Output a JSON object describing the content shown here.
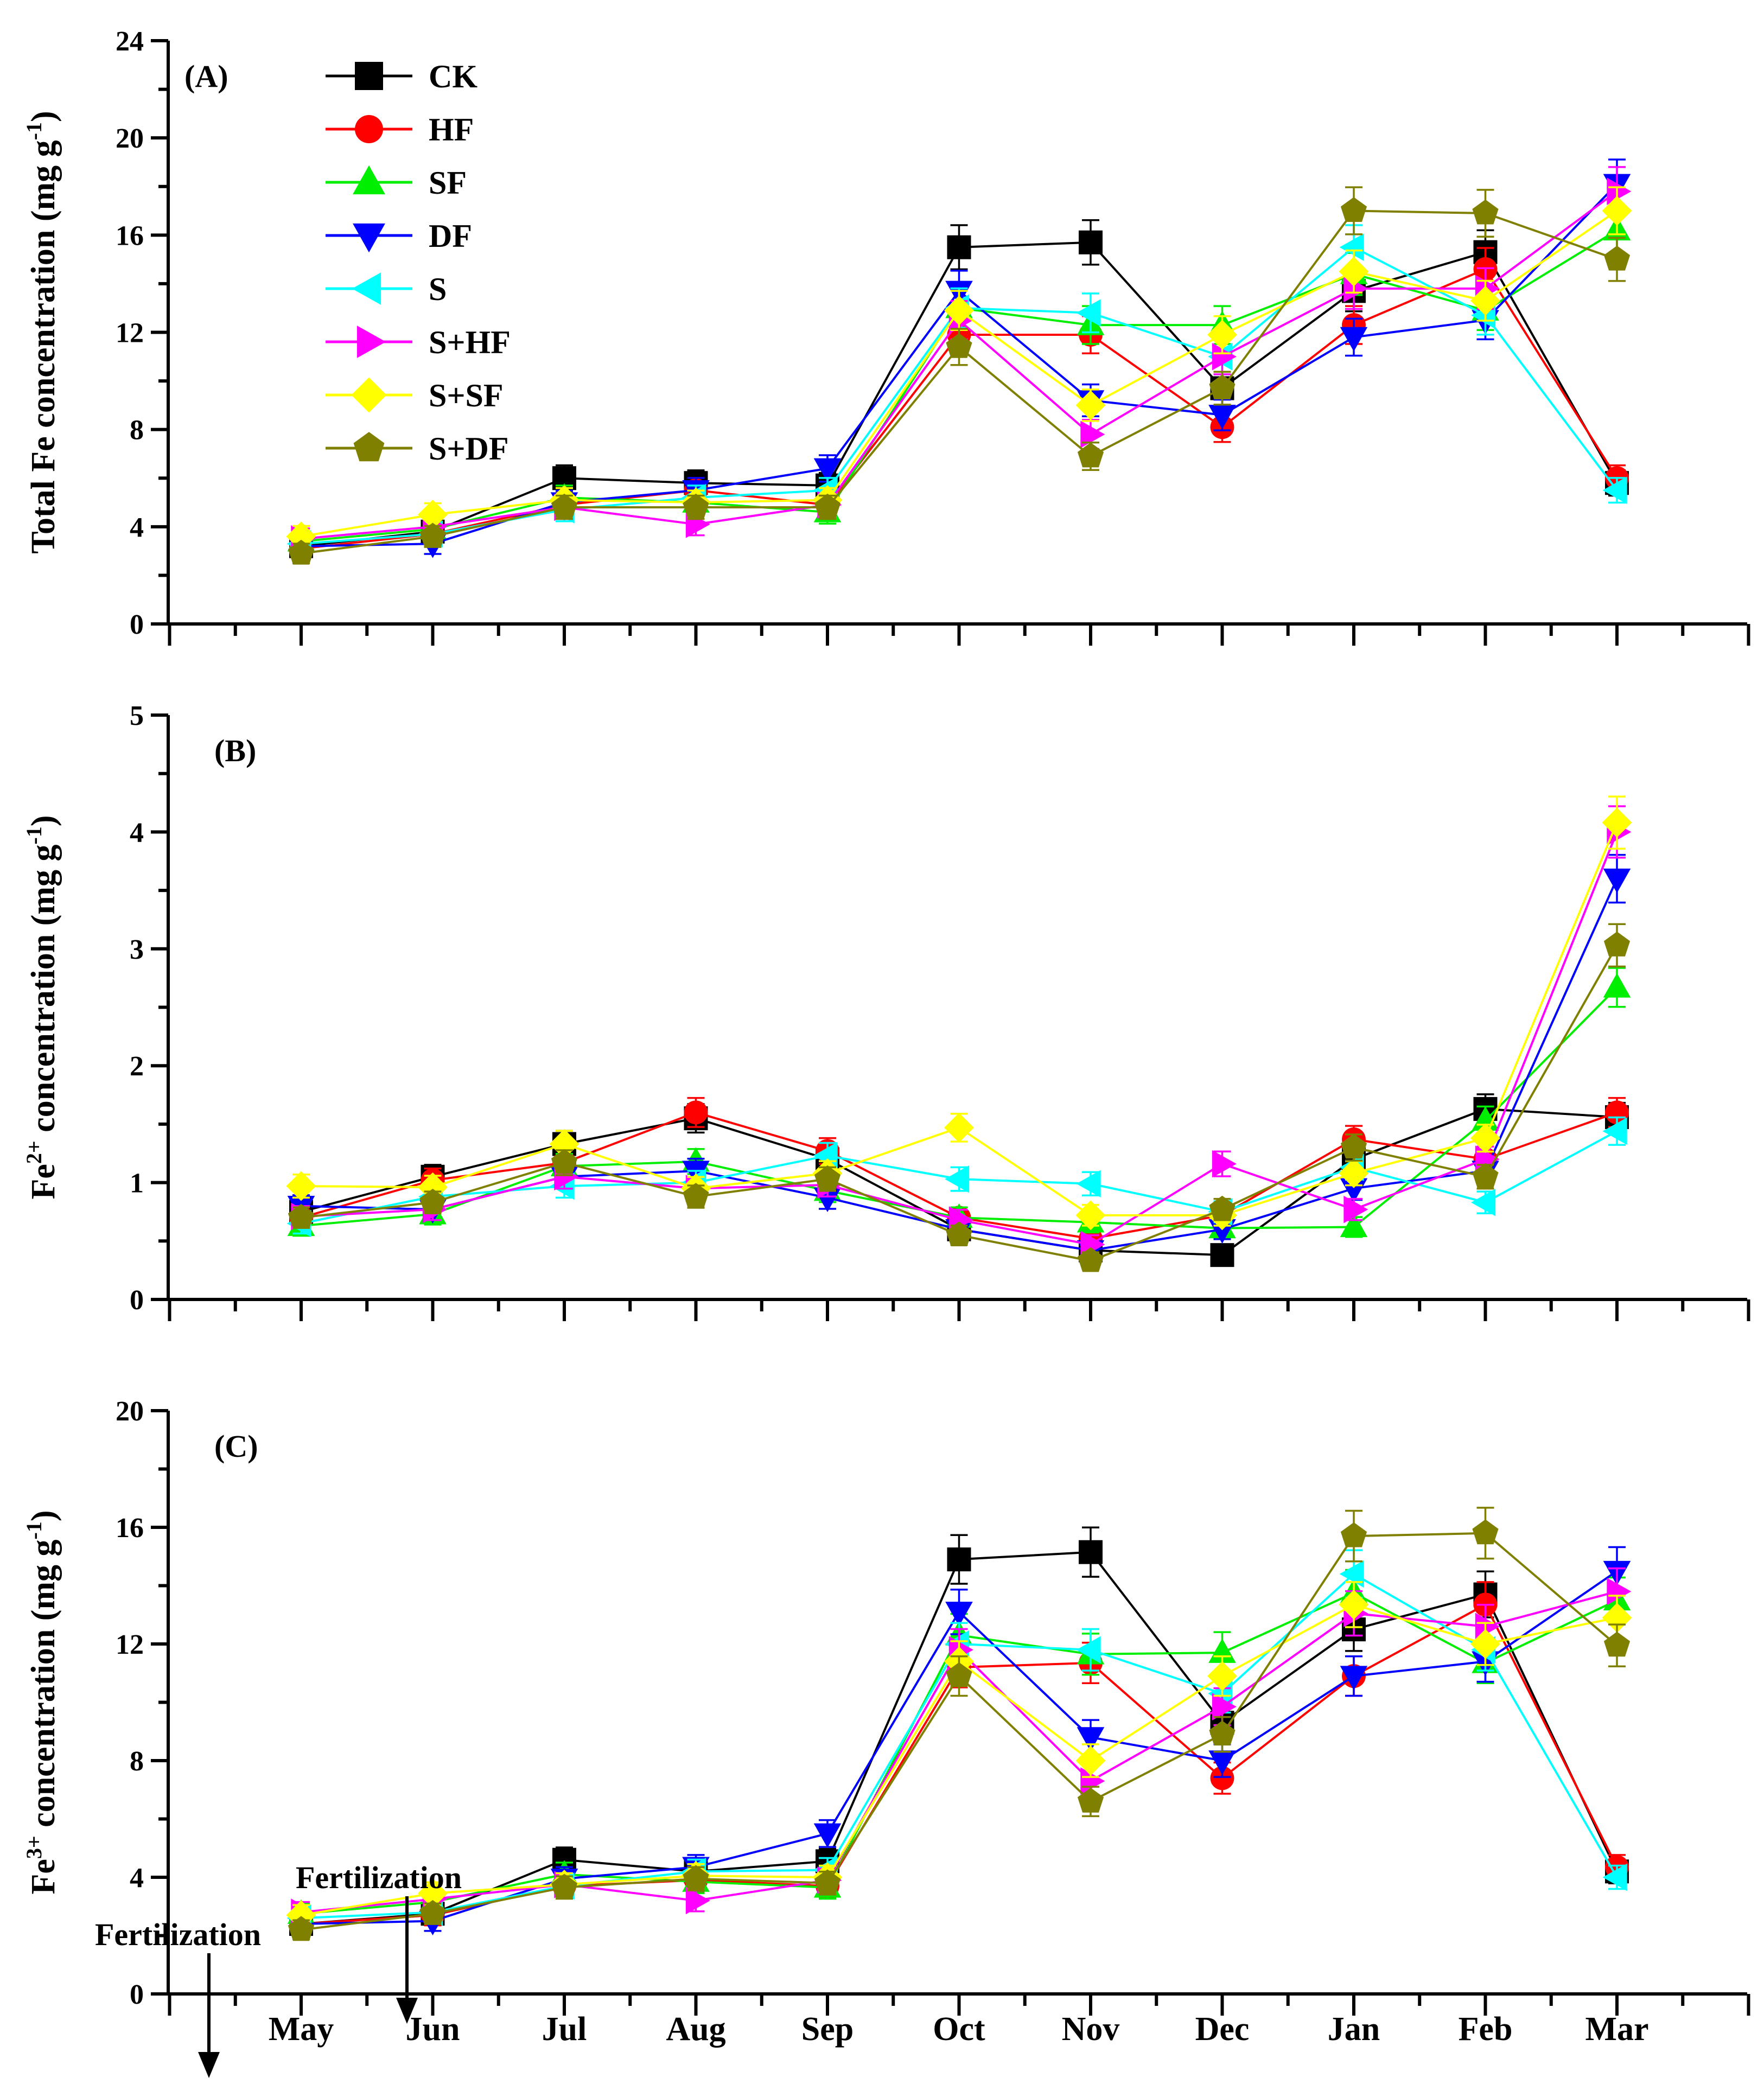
{
  "months": [
    "May",
    "Jun",
    "Jul",
    "Aug",
    "Sep",
    "Oct",
    "Nov",
    "Dec",
    "Jan",
    "Feb",
    "Mar"
  ],
  "series_styles": [
    {
      "name": "CK",
      "color": "#000000",
      "marker": "square"
    },
    {
      "name": "HF",
      "color": "#ff0000",
      "marker": "circle"
    },
    {
      "name": "SF",
      "color": "#00ee00",
      "marker": "triangle-up"
    },
    {
      "name": "DF",
      "color": "#0000ff",
      "marker": "triangle-down"
    },
    {
      "name": "S",
      "color": "#00ffff",
      "marker": "triangle-left"
    },
    {
      "name": "S+HF",
      "color": "#ff00ff",
      "marker": "triangle-right"
    },
    {
      "name": "S+SF",
      "color": "#ffff00",
      "marker": "diamond"
    },
    {
      "name": "S+DF",
      "color": "#808000",
      "marker": "pentagon"
    }
  ],
  "annotations": {
    "fertilization_1": "Fertilization",
    "fertilization_2": "Fertilization"
  },
  "chart_data": [
    {
      "panel": "(A)",
      "type": "line",
      "ylabel_main": "Total Fe concentration  (mg g",
      "ylabel_sup": "-1",
      "ylabel_end": ")",
      "ylim": [
        0,
        24
      ],
      "yticks": [
        0,
        4,
        8,
        12,
        16,
        20,
        24
      ],
      "show_legend": true,
      "legend_position": "top-left",
      "series": [
        {
          "name": "CK",
          "values": [
            3.2,
            3.8,
            6.0,
            5.8,
            5.7,
            15.5,
            15.7,
            9.7,
            13.7,
            15.3,
            5.8
          ]
        },
        {
          "name": "HF",
          "values": [
            3.1,
            3.7,
            4.9,
            5.5,
            4.9,
            11.9,
            11.9,
            8.1,
            12.3,
            14.6,
            6.0
          ]
        },
        {
          "name": "SF",
          "values": [
            3.4,
            3.9,
            5.2,
            5.0,
            4.6,
            13.0,
            12.3,
            12.3,
            14.4,
            12.9,
            16.2
          ]
        },
        {
          "name": "DF",
          "values": [
            3.2,
            3.3,
            5.0,
            5.5,
            6.4,
            13.7,
            9.2,
            8.6,
            11.8,
            12.5,
            18.1
          ]
        },
        {
          "name": "S",
          "values": [
            3.3,
            3.7,
            4.7,
            5.2,
            5.5,
            13.0,
            12.8,
            11.0,
            15.5,
            12.7,
            5.5
          ]
        },
        {
          "name": "S+HF",
          "values": [
            3.5,
            4.0,
            4.8,
            4.1,
            4.9,
            12.5,
            7.8,
            11.0,
            13.8,
            13.8,
            17.8
          ]
        },
        {
          "name": "S+SF",
          "values": [
            3.6,
            4.5,
            5.1,
            5.0,
            5.1,
            12.9,
            9.0,
            11.9,
            14.5,
            13.3,
            17.0
          ]
        },
        {
          "name": "S+DF",
          "values": [
            2.9,
            3.6,
            4.8,
            4.8,
            4.8,
            11.4,
            6.9,
            9.7,
            17.0,
            16.9,
            15.0
          ]
        }
      ]
    },
    {
      "panel": "(B)",
      "type": "line",
      "ylabel_main": "Fe",
      "ylabel_sup": "2+",
      "ylabel_end": " concentration  (mg g",
      "ylabel_sup2": "-1",
      "ylabel_end2": ")",
      "ylim": [
        0,
        5
      ],
      "yticks": [
        0,
        1,
        2,
        3,
        4,
        5
      ],
      "show_legend": false,
      "series": [
        {
          "name": "CK",
          "values": [
            0.75,
            1.05,
            1.33,
            1.55,
            1.2,
            0.6,
            0.42,
            0.38,
            1.2,
            1.63,
            1.56
          ]
        },
        {
          "name": "HF",
          "values": [
            0.7,
            1.02,
            1.17,
            1.6,
            1.27,
            0.7,
            0.52,
            0.72,
            1.37,
            1.2,
            1.6
          ]
        },
        {
          "name": "SF",
          "values": [
            0.63,
            0.73,
            1.14,
            1.18,
            0.93,
            0.7,
            0.66,
            0.61,
            0.62,
            1.53,
            2.67
          ]
        },
        {
          "name": "DF",
          "values": [
            0.8,
            0.77,
            1.05,
            1.1,
            0.87,
            0.6,
            0.42,
            0.6,
            0.95,
            1.1,
            3.6
          ]
        },
        {
          "name": "S",
          "values": [
            0.65,
            0.88,
            0.97,
            1.0,
            1.23,
            1.03,
            0.99,
            0.75,
            1.13,
            0.83,
            1.44
          ]
        },
        {
          "name": "S+HF",
          "values": [
            0.71,
            0.77,
            1.05,
            0.95,
            0.98,
            0.68,
            0.47,
            1.16,
            0.77,
            1.2,
            4.0
          ]
        },
        {
          "name": "S+SF",
          "values": [
            0.97,
            0.96,
            1.33,
            0.95,
            1.08,
            1.47,
            0.72,
            0.72,
            1.08,
            1.38,
            4.08
          ]
        },
        {
          "name": "S+DF",
          "values": [
            0.7,
            0.83,
            1.17,
            0.88,
            1.03,
            0.55,
            0.33,
            0.77,
            1.3,
            1.05,
            3.03
          ]
        }
      ]
    },
    {
      "panel": "(C)",
      "type": "line",
      "ylabel_main": "Fe",
      "ylabel_sup": "3+",
      "ylabel_end": " concentration  (mg g",
      "ylabel_sup2": "-1",
      "ylabel_end2": ")",
      "ylim": [
        0,
        20
      ],
      "yticks": [
        0,
        4,
        8,
        12,
        16,
        20
      ],
      "show_legend": false,
      "series": [
        {
          "name": "CK",
          "values": [
            2.4,
            2.75,
            4.6,
            4.2,
            4.55,
            14.9,
            15.15,
            9.3,
            12.5,
            13.7,
            4.2
          ]
        },
        {
          "name": "HF",
          "values": [
            2.4,
            2.7,
            3.7,
            3.9,
            3.7,
            11.2,
            11.35,
            7.4,
            10.9,
            13.35,
            4.35
          ]
        },
        {
          "name": "SF",
          "values": [
            2.75,
            3.15,
            4.1,
            3.85,
            3.65,
            12.3,
            11.65,
            11.7,
            13.75,
            11.35,
            13.5
          ]
        },
        {
          "name": "DF",
          "values": [
            2.4,
            2.5,
            3.95,
            4.35,
            5.5,
            13.1,
            8.8,
            8.0,
            10.9,
            11.4,
            14.5
          ]
        },
        {
          "name": "S",
          "values": [
            2.6,
            2.8,
            3.7,
            4.2,
            4.25,
            12.0,
            11.8,
            10.3,
            14.4,
            11.8,
            4.0
          ]
        },
        {
          "name": "S+HF",
          "values": [
            2.8,
            3.25,
            3.75,
            3.2,
            3.9,
            11.8,
            7.3,
            9.85,
            13.05,
            12.6,
            13.8
          ]
        },
        {
          "name": "S+SF",
          "values": [
            2.7,
            3.45,
            3.75,
            4.05,
            4.0,
            11.4,
            8.0,
            10.9,
            13.35,
            12.0,
            12.9
          ]
        },
        {
          "name": "S+DF",
          "values": [
            2.2,
            2.75,
            3.65,
            3.95,
            3.8,
            10.9,
            6.6,
            8.9,
            15.7,
            15.8,
            11.95
          ]
        }
      ]
    }
  ]
}
